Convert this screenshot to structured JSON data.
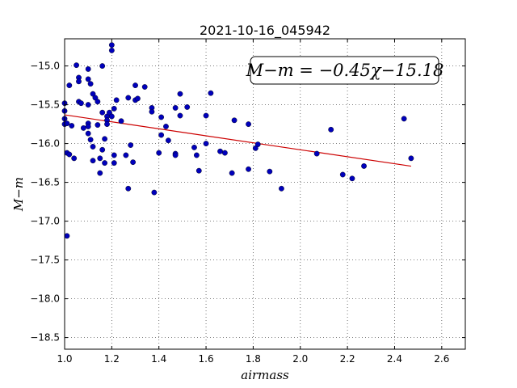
{
  "chart_data": {
    "type": "scatter",
    "title": "2021-10-16_045942",
    "xlabel": "airmass",
    "ylabel": "M−m",
    "xlim": [
      1.0,
      2.7
    ],
    "ylim": [
      -18.65,
      -14.65
    ],
    "y_inverted": true,
    "grid": true,
    "x_ticks": [
      1.0,
      1.2,
      1.4,
      1.6,
      1.8,
      2.0,
      2.2,
      2.4,
      2.6
    ],
    "x_tick_labels": [
      "1.0",
      "1.2",
      "1.4",
      "1.6",
      "1.8",
      "2.0",
      "2.2",
      "2.4",
      "2.6"
    ],
    "y_ticks": [
      -15.0,
      -15.5,
      -16.0,
      -16.5,
      -17.0,
      -17.5,
      -18.0,
      -18.5
    ],
    "y_tick_labels": [
      "−15.0",
      "−15.5",
      "−16.0",
      "−16.5",
      "−17.0",
      "−17.5",
      "−18.0",
      "−18.5"
    ],
    "annotation": "M−m = −0.45χ−15.18",
    "fit": {
      "slope": -0.45,
      "intercept": -15.18,
      "x_range": [
        1.0,
        2.47
      ],
      "color": "#cc0000"
    },
    "series": [
      {
        "color": "#0000bb",
        "points": [
          [
            1.0,
            -15.58
          ],
          [
            1.0,
            -15.68
          ],
          [
            1.0,
            -15.75
          ],
          [
            1.0,
            -15.48
          ],
          [
            1.01,
            -15.74
          ],
          [
            1.01,
            -16.12
          ],
          [
            1.02,
            -15.25
          ],
          [
            1.02,
            -16.14
          ],
          [
            1.01,
            -17.19
          ],
          [
            1.03,
            -15.77
          ],
          [
            1.04,
            -16.19
          ],
          [
            1.05,
            -14.99
          ],
          [
            1.06,
            -15.15
          ],
          [
            1.06,
            -15.2
          ],
          [
            1.06,
            -15.46
          ],
          [
            1.07,
            -15.48
          ],
          [
            1.08,
            -15.8
          ],
          [
            1.1,
            -15.04
          ],
          [
            1.1,
            -15.17
          ],
          [
            1.11,
            -15.23
          ],
          [
            1.1,
            -15.5
          ],
          [
            1.1,
            -15.74
          ],
          [
            1.1,
            -15.78
          ],
          [
            1.1,
            -15.87
          ],
          [
            1.11,
            -15.95
          ],
          [
            1.12,
            -15.36
          ],
          [
            1.12,
            -16.04
          ],
          [
            1.12,
            -16.22
          ],
          [
            1.13,
            -15.41
          ],
          [
            1.14,
            -15.46
          ],
          [
            1.14,
            -15.76
          ],
          [
            1.15,
            -16.19
          ],
          [
            1.15,
            -16.38
          ],
          [
            1.16,
            -15.0
          ],
          [
            1.16,
            -15.6
          ],
          [
            1.16,
            -16.08
          ],
          [
            1.17,
            -15.94
          ],
          [
            1.17,
            -16.25
          ],
          [
            1.18,
            -15.65
          ],
          [
            1.18,
            -15.7
          ],
          [
            1.18,
            -15.75
          ],
          [
            1.19,
            -15.6
          ],
          [
            1.2,
            -15.65
          ],
          [
            1.2,
            -14.73
          ],
          [
            1.2,
            -14.8
          ],
          [
            1.21,
            -15.55
          ],
          [
            1.21,
            -16.15
          ],
          [
            1.21,
            -16.25
          ],
          [
            1.22,
            -15.44
          ],
          [
            1.24,
            -15.71
          ],
          [
            1.26,
            -16.15
          ],
          [
            1.27,
            -15.41
          ],
          [
            1.27,
            -16.58
          ],
          [
            1.28,
            -16.02
          ],
          [
            1.29,
            -16.24
          ],
          [
            1.3,
            -15.25
          ],
          [
            1.3,
            -15.44
          ],
          [
            1.31,
            -15.42
          ],
          [
            1.34,
            -15.27
          ],
          [
            1.37,
            -15.54
          ],
          [
            1.37,
            -15.59
          ],
          [
            1.38,
            -16.63
          ],
          [
            1.4,
            -16.12
          ],
          [
            1.41,
            -15.89
          ],
          [
            1.41,
            -15.66
          ],
          [
            1.43,
            -15.78
          ],
          [
            1.44,
            -15.96
          ],
          [
            1.47,
            -15.54
          ],
          [
            1.47,
            -16.13
          ],
          [
            1.47,
            -16.15
          ],
          [
            1.49,
            -15.36
          ],
          [
            1.49,
            -15.64
          ],
          [
            1.52,
            -15.53
          ],
          [
            1.55,
            -16.05
          ],
          [
            1.56,
            -16.15
          ],
          [
            1.57,
            -16.35
          ],
          [
            1.6,
            -16.0
          ],
          [
            1.6,
            -15.64
          ],
          [
            1.62,
            -15.35
          ],
          [
            1.66,
            -16.1
          ],
          [
            1.68,
            -16.12
          ],
          [
            1.71,
            -16.38
          ],
          [
            1.72,
            -15.7
          ],
          [
            1.78,
            -15.75
          ],
          [
            1.78,
            -16.33
          ],
          [
            1.81,
            -16.06
          ],
          [
            1.82,
            -16.01
          ],
          [
            1.87,
            -16.36
          ],
          [
            1.92,
            -16.58
          ],
          [
            2.07,
            -16.13
          ],
          [
            2.13,
            -15.82
          ],
          [
            2.18,
            -16.4
          ],
          [
            2.22,
            -16.45
          ],
          [
            2.27,
            -16.29
          ],
          [
            2.44,
            -15.68
          ],
          [
            2.47,
            -16.19
          ]
        ]
      }
    ]
  }
}
